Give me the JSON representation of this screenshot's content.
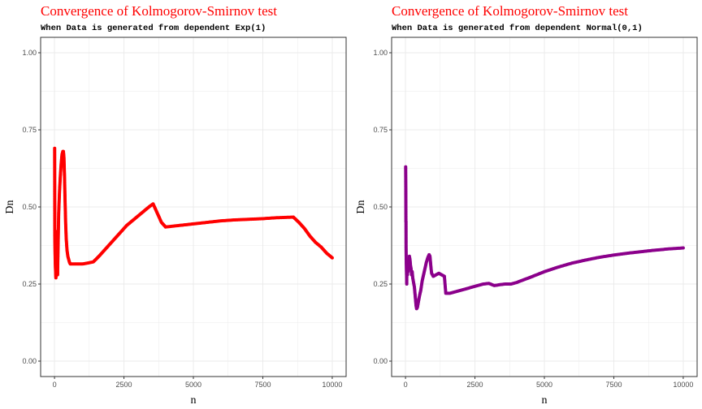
{
  "colors": {
    "left_series": "#ff0000",
    "right_series": "#8b008b",
    "title": "#ff0000",
    "grid": "#ebebeb",
    "panel_border": "#333333"
  },
  "chart_data": [
    {
      "type": "scatter",
      "title": "Convergence of Kolmogorov-Smirnov test",
      "subtitle": "When Data is generated from dependent Exp(1)",
      "xlabel": "n",
      "ylabel": "Dn",
      "xlim": [
        -500,
        10500
      ],
      "ylim": [
        -0.05,
        1.05
      ],
      "xticks": [
        0,
        2500,
        5000,
        7500,
        10000
      ],
      "xtick_labels": [
        "0",
        "2500",
        "5000",
        "7500",
        "10000"
      ],
      "yticks": [
        0,
        0.25,
        0.5,
        0.75,
        1
      ],
      "ytick_labels": [
        "0.00",
        "0.25",
        "0.50",
        "0.75",
        "1.00"
      ],
      "grid": true,
      "series": [
        {
          "color": "#ff0000",
          "points": [
            [
              5,
              0.69
            ],
            [
              10,
              0.41
            ],
            [
              15,
              0.38
            ],
            [
              20,
              0.35
            ],
            [
              25,
              0.33
            ],
            [
              30,
              0.31
            ],
            [
              35,
              0.3
            ],
            [
              40,
              0.29
            ],
            [
              45,
              0.28
            ],
            [
              50,
              0.27
            ],
            [
              60,
              0.4
            ],
            [
              70,
              0.42
            ],
            [
              80,
              0.36
            ],
            [
              90,
              0.34
            ],
            [
              100,
              0.3
            ],
            [
              110,
              0.28
            ],
            [
              120,
              0.33
            ],
            [
              150,
              0.48
            ],
            [
              180,
              0.55
            ],
            [
              210,
              0.6
            ],
            [
              240,
              0.64
            ],
            [
              270,
              0.67
            ],
            [
              300,
              0.68
            ],
            [
              320,
              0.68
            ],
            [
              340,
              0.66
            ],
            [
              360,
              0.6
            ],
            [
              380,
              0.52
            ],
            [
              400,
              0.45
            ],
            [
              420,
              0.4
            ],
            [
              450,
              0.36
            ],
            [
              480,
              0.34
            ],
            [
              510,
              0.33
            ],
            [
              540,
              0.32
            ],
            [
              570,
              0.315
            ],
            [
              600,
              0.315
            ],
            [
              800,
              0.315
            ],
            [
              1000,
              0.315
            ],
            [
              1200,
              0.318
            ],
            [
              1400,
              0.322
            ],
            [
              1600,
              0.34
            ],
            [
              1800,
              0.36
            ],
            [
              2000,
              0.38
            ],
            [
              2200,
              0.4
            ],
            [
              2400,
              0.42
            ],
            [
              2600,
              0.44
            ],
            [
              2800,
              0.455
            ],
            [
              3000,
              0.47
            ],
            [
              3200,
              0.485
            ],
            [
              3400,
              0.5
            ],
            [
              3550,
              0.51
            ],
            [
              3700,
              0.48
            ],
            [
              3850,
              0.45
            ],
            [
              4000,
              0.435
            ],
            [
              4500,
              0.44
            ],
            [
              5000,
              0.445
            ],
            [
              5500,
              0.45
            ],
            [
              6000,
              0.455
            ],
            [
              6500,
              0.458
            ],
            [
              7000,
              0.46
            ],
            [
              7500,
              0.462
            ],
            [
              8000,
              0.465
            ],
            [
              8600,
              0.467
            ],
            [
              8800,
              0.45
            ],
            [
              9000,
              0.43
            ],
            [
              9200,
              0.405
            ],
            [
              9400,
              0.385
            ],
            [
              9600,
              0.37
            ],
            [
              9800,
              0.35
            ],
            [
              10000,
              0.335
            ]
          ]
        }
      ]
    },
    {
      "type": "scatter",
      "title": "Convergence of Kolmogorov-Smirnov test",
      "subtitle": "When Data is generated from dependent Normal(0,1)",
      "xlabel": "n",
      "ylabel": "Dn",
      "xlim": [
        -500,
        10500
      ],
      "ylim": [
        -0.05,
        1.05
      ],
      "xticks": [
        0,
        2500,
        5000,
        7500,
        10000
      ],
      "xtick_labels": [
        "0",
        "2500",
        "5000",
        "7500",
        "10000"
      ],
      "yticks": [
        0,
        0.25,
        0.5,
        0.75,
        1
      ],
      "ytick_labels": [
        "0.00",
        "0.25",
        "0.50",
        "0.75",
        "1.00"
      ],
      "grid": true,
      "series": [
        {
          "color": "#8b008b",
          "points": [
            [
              5,
              0.63
            ],
            [
              10,
              0.56
            ],
            [
              15,
              0.455
            ],
            [
              18,
              0.45
            ],
            [
              20,
              0.37
            ],
            [
              25,
              0.33
            ],
            [
              30,
              0.31
            ],
            [
              35,
              0.29
            ],
            [
              40,
              0.27
            ],
            [
              45,
              0.25
            ],
            [
              50,
              0.32
            ],
            [
              60,
              0.3
            ],
            [
              70,
              0.28
            ],
            [
              80,
              0.31
            ],
            [
              90,
              0.29
            ],
            [
              100,
              0.32
            ],
            [
              120,
              0.31
            ],
            [
              140,
              0.34
            ],
            [
              160,
              0.33
            ],
            [
              180,
              0.31
            ],
            [
              200,
              0.3
            ],
            [
              220,
              0.28
            ],
            [
              240,
              0.29
            ],
            [
              260,
              0.27
            ],
            [
              280,
              0.26
            ],
            [
              300,
              0.25
            ],
            [
              320,
              0.24
            ],
            [
              340,
              0.22
            ],
            [
              360,
              0.2
            ],
            [
              380,
              0.18
            ],
            [
              400,
              0.17
            ],
            [
              430,
              0.175
            ],
            [
              460,
              0.19
            ],
            [
              500,
              0.21
            ],
            [
              550,
              0.23
            ],
            [
              600,
              0.26
            ],
            [
              650,
              0.28
            ],
            [
              700,
              0.3
            ],
            [
              750,
              0.32
            ],
            [
              800,
              0.335
            ],
            [
              850,
              0.345
            ],
            [
              880,
              0.34
            ],
            [
              900,
              0.32
            ],
            [
              920,
              0.3
            ],
            [
              940,
              0.285
            ],
            [
              1000,
              0.275
            ],
            [
              1100,
              0.28
            ],
            [
              1200,
              0.285
            ],
            [
              1300,
              0.28
            ],
            [
              1400,
              0.275
            ],
            [
              1450,
              0.22
            ],
            [
              1600,
              0.22
            ],
            [
              1800,
              0.225
            ],
            [
              2000,
              0.23
            ],
            [
              2200,
              0.235
            ],
            [
              2400,
              0.24
            ],
            [
              2600,
              0.245
            ],
            [
              2800,
              0.25
            ],
            [
              3000,
              0.252
            ],
            [
              3200,
              0.245
            ],
            [
              3400,
              0.248
            ],
            [
              3600,
              0.25
            ],
            [
              3800,
              0.25
            ],
            [
              4000,
              0.255
            ],
            [
              4200,
              0.262
            ],
            [
              4500,
              0.272
            ],
            [
              5000,
              0.29
            ],
            [
              5500,
              0.305
            ],
            [
              6000,
              0.318
            ],
            [
              6500,
              0.328
            ],
            [
              7000,
              0.337
            ],
            [
              7500,
              0.344
            ],
            [
              8000,
              0.35
            ],
            [
              8500,
              0.355
            ],
            [
              9000,
              0.36
            ],
            [
              9500,
              0.364
            ],
            [
              10000,
              0.367
            ]
          ]
        }
      ]
    }
  ]
}
